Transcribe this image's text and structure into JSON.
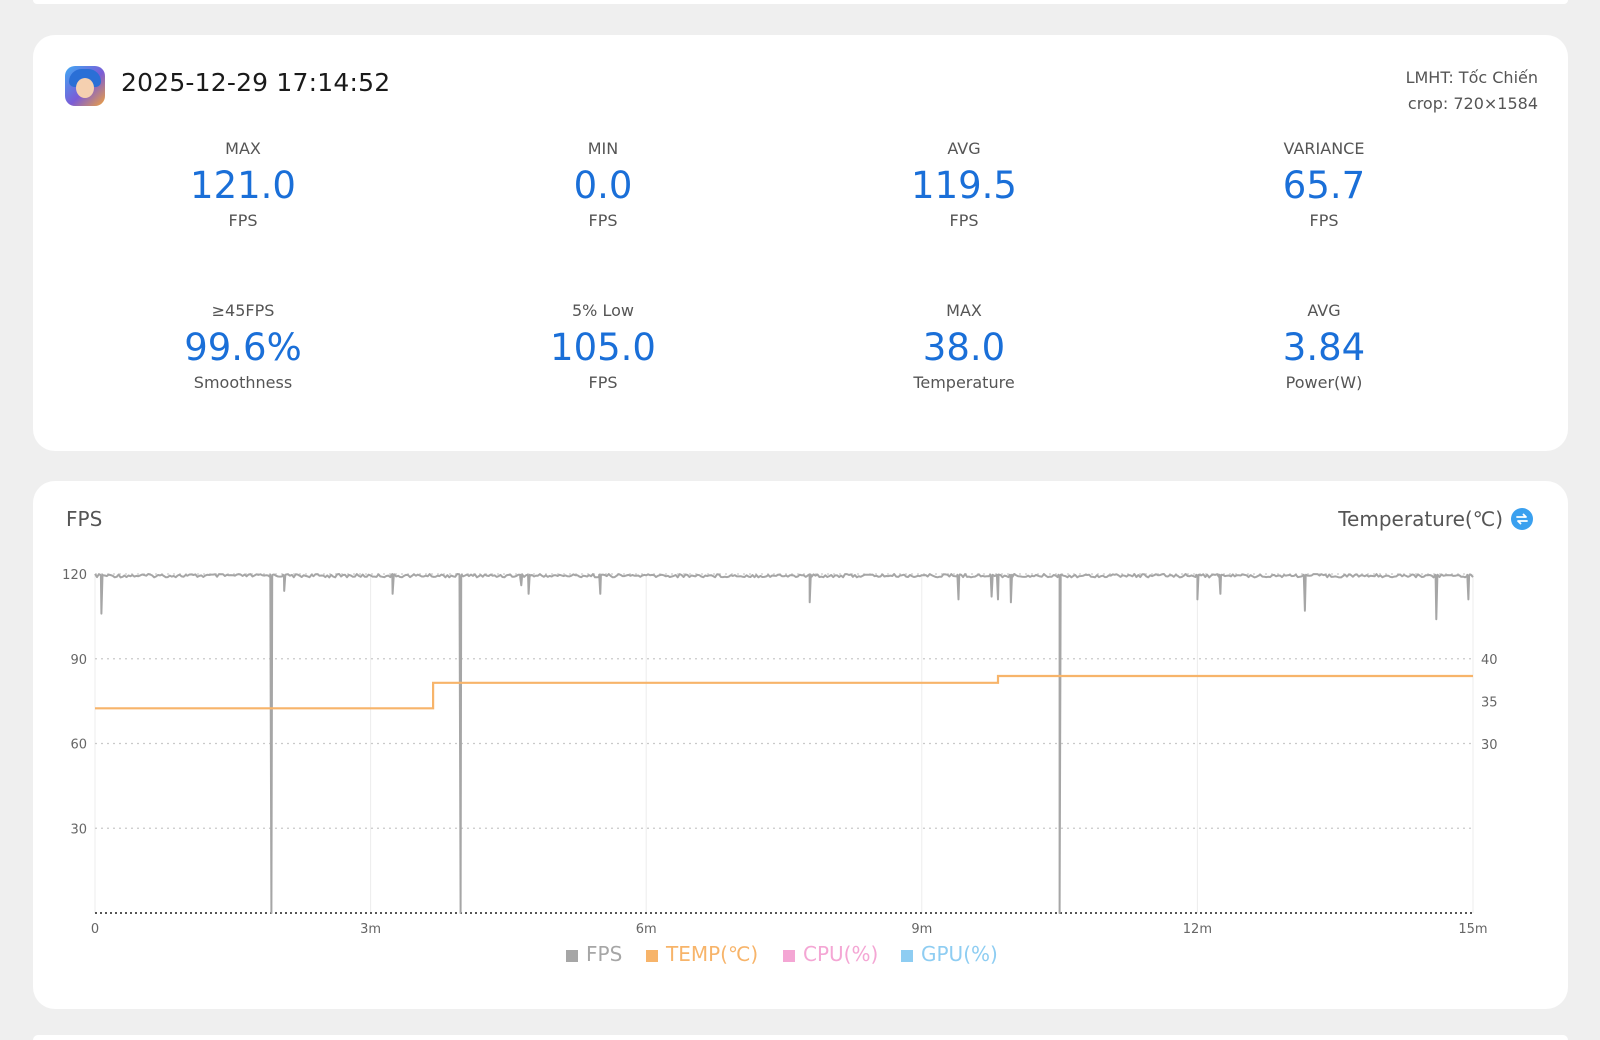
{
  "session": {
    "timestamp": "2025-12-29 17:14:52",
    "game": "LMHT: Tốc Chiến",
    "crop": "crop: 720×1584"
  },
  "stats": [
    {
      "label": "MAX",
      "value": "121.0",
      "unit": "FPS"
    },
    {
      "label": "MIN",
      "value": "0.0",
      "unit": "FPS"
    },
    {
      "label": "AVG",
      "value": "119.5",
      "unit": "FPS"
    },
    {
      "label": "VARIANCE",
      "value": "65.7",
      "unit": "FPS"
    },
    {
      "label": "≥45FPS",
      "value": "99.6%",
      "unit": "Smoothness"
    },
    {
      "label": "5% Low",
      "value": "105.0",
      "unit": "FPS"
    },
    {
      "label": "MAX",
      "value": "38.0",
      "unit": "Temperature"
    },
    {
      "label": "AVG",
      "value": "3.84",
      "unit": "Power(W)"
    }
  ],
  "chart_header": {
    "left_title": "FPS",
    "right_selector": "Temperature(℃)",
    "swap_icon": "swap-icon"
  },
  "chart_data": {
    "type": "line",
    "x_unit": "minutes",
    "xlim": [
      0,
      15
    ],
    "x_ticks": [
      "0",
      "3m",
      "6m",
      "9m",
      "12m",
      "15m"
    ],
    "y_left": {
      "ylim": [
        0,
        120
      ],
      "ticks": [
        "120",
        "90",
        "60",
        "30"
      ]
    },
    "y_right": {
      "ticks": [
        "40",
        "35",
        "30"
      ]
    },
    "grid": true,
    "legend_position": "bottom-center",
    "legend": [
      {
        "name": "FPS",
        "color": "#a6a6a6"
      },
      {
        "name": "TEMP(℃)",
        "color": "#f7b46a"
      },
      {
        "name": "CPU(%)",
        "color": "#f4a6d4"
      },
      {
        "name": "GPU(%)",
        "color": "#8ecdf2"
      }
    ],
    "series": [
      {
        "name": "FPS",
        "baseline": 120,
        "dips": [
          {
            "x": 0.07,
            "y": 106
          },
          {
            "x": 1.92,
            "y": 0
          },
          {
            "x": 2.06,
            "y": 114
          },
          {
            "x": 3.24,
            "y": 113
          },
          {
            "x": 3.98,
            "y": 0
          },
          {
            "x": 4.64,
            "y": 116
          },
          {
            "x": 4.72,
            "y": 113
          },
          {
            "x": 5.5,
            "y": 113
          },
          {
            "x": 7.78,
            "y": 110
          },
          {
            "x": 9.4,
            "y": 111
          },
          {
            "x": 9.76,
            "y": 112
          },
          {
            "x": 9.83,
            "y": 111
          },
          {
            "x": 9.97,
            "y": 110
          },
          {
            "x": 10.5,
            "y": 0
          },
          {
            "x": 12.0,
            "y": 111
          },
          {
            "x": 12.25,
            "y": 113
          },
          {
            "x": 13.17,
            "y": 107
          },
          {
            "x": 14.6,
            "y": 104
          },
          {
            "x": 14.95,
            "y": 111
          }
        ]
      },
      {
        "name": "TEMP(℃)",
        "x": [
          0,
          3.68,
          3.68,
          9.83,
          9.83,
          15
        ],
        "y": [
          34.2,
          34.2,
          37.2,
          37.2,
          38.0,
          38.0
        ]
      }
    ]
  }
}
